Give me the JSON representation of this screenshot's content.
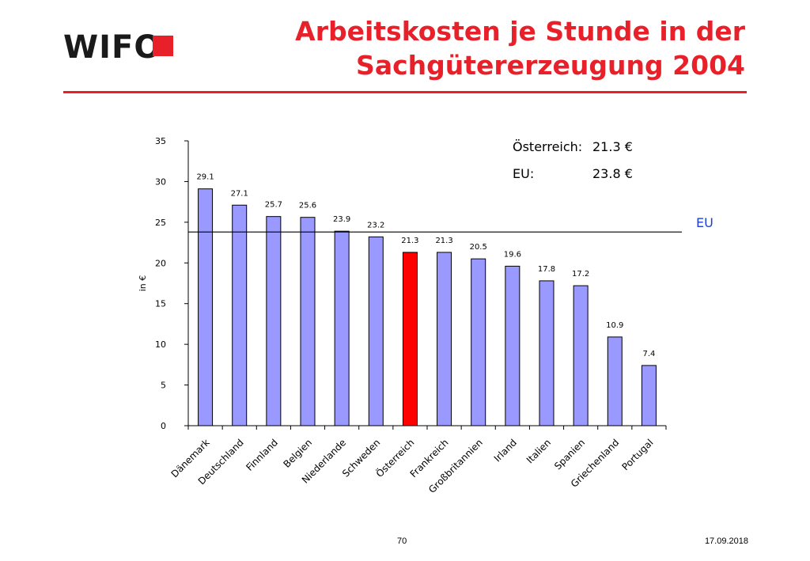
{
  "logo": {
    "text": "WIFO"
  },
  "title": {
    "line1": "Arbeitskosten je Stunde in der",
    "line2": "Sachgütererzeugung 2004"
  },
  "info": {
    "austria_label": "Österreich:",
    "austria_value": "21.3 €",
    "eu_label": "EU:",
    "eu_value": "23.8 €"
  },
  "reference_line": {
    "label": "EU",
    "value": 23.8
  },
  "footer": {
    "page": "70",
    "date": "17.09.2018"
  },
  "colors": {
    "title": "#e8202a",
    "rule": "#e8202a",
    "bar": "#9999ff",
    "highlight_bar": "#ff0000",
    "eu_label": "#1f3fd6",
    "logo_square": "#e8202a"
  },
  "chart_data": {
    "type": "bar",
    "ylabel": "in €",
    "ylim": [
      0,
      35
    ],
    "yticks": [
      0,
      5,
      10,
      15,
      20,
      25,
      30,
      35
    ],
    "categories": [
      "Dänemark",
      "Deutschland",
      "Finnland",
      "Belgien",
      "Niederlande",
      "Schweden",
      "Österreich",
      "Frankreich",
      "Großbritannien",
      "Irland",
      "Italien",
      "Spanien",
      "Griechenland",
      "Portugal"
    ],
    "values": [
      29.1,
      27.1,
      25.7,
      25.6,
      23.9,
      23.2,
      21.3,
      21.3,
      20.5,
      19.6,
      17.8,
      17.2,
      10.9,
      7.4
    ],
    "value_labels": [
      "29.1",
      "27.1",
      "25.7",
      "25.6",
      "23.9",
      "23.2",
      "21.3",
      "21.3",
      "20.5",
      "19.6",
      "17.8",
      "17.2",
      "10.9",
      "7.4"
    ],
    "highlight_category": "Österreich",
    "grid": false,
    "legend": "none"
  }
}
